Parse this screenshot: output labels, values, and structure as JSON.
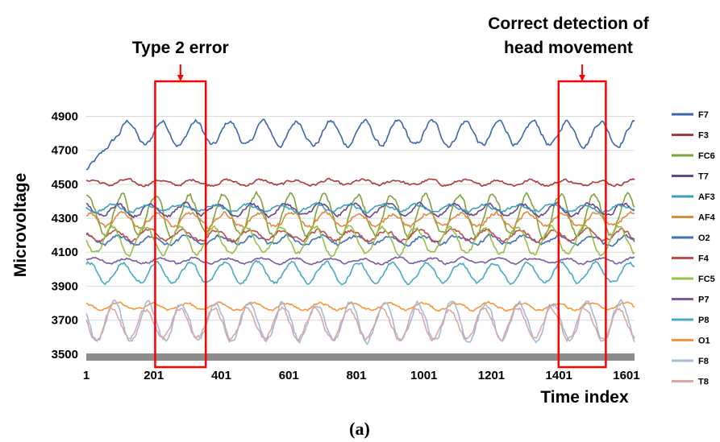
{
  "caption": "(a)",
  "chart_data": {
    "type": "line",
    "title": "",
    "xlabel": "Time index",
    "ylabel": "Microvoltage",
    "xlim": [
      1,
      1625
    ],
    "ylim": [
      3480,
      5040
    ],
    "x_ticks": [
      1,
      201,
      401,
      601,
      801,
      1001,
      1201,
      1401,
      1601
    ],
    "x_tick_labels": [
      "1",
      "201",
      "401",
      "601",
      "801",
      "1001",
      "1201",
      "1401",
      "1601"
    ],
    "y_ticks": [
      3500,
      3700,
      3900,
      4100,
      4300,
      4500,
      4700,
      4900
    ],
    "y_tick_labels": [
      "3500",
      "3700",
      "3900",
      "4100",
      "4300",
      "4500",
      "4700",
      "4900"
    ],
    "grid": true,
    "legend_position": "right",
    "annotations": [
      {
        "label": "Type 2 error",
        "x_start": 205,
        "x_end": 355
      },
      {
        "label_lines": [
          "Correct detection of",
          "head movement"
        ],
        "x_start": 1400,
        "x_end": 1540
      }
    ],
    "series": [
      {
        "name": "F7",
        "color": "#3a66ad",
        "baseline": 4800,
        "amplitude": 70,
        "period": 100,
        "phase": 0.0,
        "noise": 22
      },
      {
        "name": "F3",
        "color": "#a83c3a",
        "baseline": 4510,
        "amplitude": 15,
        "period": 100,
        "phase": 0.4,
        "noise": 14
      },
      {
        "name": "FC6",
        "color": "#7ea33b",
        "baseline": 4320,
        "amplitude": 120,
        "period": 100,
        "phase": 1.2,
        "noise": 25
      },
      {
        "name": "T7",
        "color": "#65458e",
        "baseline": 4350,
        "amplitude": 35,
        "period": 100,
        "phase": 2.0,
        "noise": 18
      },
      {
        "name": "AF3",
        "color": "#3ba0bf",
        "baseline": 4360,
        "amplitude": 20,
        "period": 100,
        "phase": 2.8,
        "noise": 14
      },
      {
        "name": "AF4",
        "color": "#df8a3b",
        "baseline": 4290,
        "amplitude": 40,
        "period": 100,
        "phase": 0.9,
        "noise": 20
      },
      {
        "name": "O2",
        "color": "#3d6fbf",
        "baseline": 4170,
        "amplitude": 25,
        "period": 100,
        "phase": 1.6,
        "noise": 18
      },
      {
        "name": "F4",
        "color": "#c54a4a",
        "baseline": 4200,
        "amplitude": 30,
        "period": 100,
        "phase": 2.4,
        "noise": 18
      },
      {
        "name": "FC5",
        "color": "#93c047",
        "baseline": 4170,
        "amplitude": 80,
        "period": 100,
        "phase": 3.0,
        "noise": 22
      },
      {
        "name": "P7",
        "color": "#7a5ba8",
        "baseline": 4050,
        "amplitude": 15,
        "period": 100,
        "phase": 0.2,
        "noise": 12
      },
      {
        "name": "P8",
        "color": "#45aac6",
        "baseline": 3980,
        "amplitude": 60,
        "period": 100,
        "phase": 1.0,
        "noise": 18
      },
      {
        "name": "O1",
        "color": "#f5963a",
        "baseline": 3780,
        "amplitude": 20,
        "period": 100,
        "phase": 1.8,
        "noise": 12
      },
      {
        "name": "F8",
        "color": "#a4b8da",
        "baseline": 3690,
        "amplitude": 110,
        "period": 100,
        "phase": 2.6,
        "noise": 28
      },
      {
        "name": "T8",
        "color": "#d9a7a5",
        "baseline": 3680,
        "amplitude": 90,
        "period": 100,
        "phase": 2.9,
        "noise": 24
      }
    ]
  }
}
